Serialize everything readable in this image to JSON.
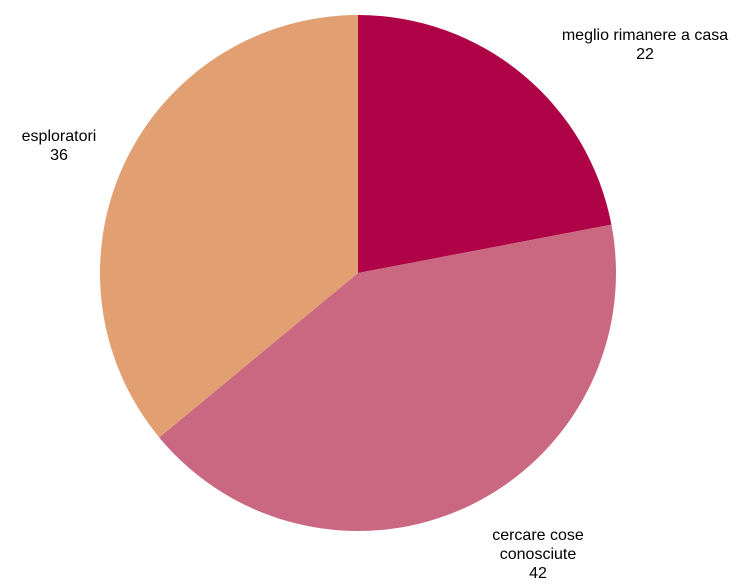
{
  "chart_data": {
    "type": "pie",
    "title": "",
    "slices": [
      {
        "label_lines": [
          "meglio rimanere a casa"
        ],
        "value": 22,
        "value_label": "22",
        "color": "#AE0347"
      },
      {
        "label_lines": [
          "cercare cose",
          "conosciute"
        ],
        "value": 42,
        "value_label": "42",
        "color": "#C96880"
      },
      {
        "label_lines": [
          "esploratori"
        ],
        "value": 36,
        "value_label": "36",
        "color": "#E19F72"
      }
    ],
    "start_angle_deg": 0,
    "direction": "clockwise",
    "legend": "none",
    "labels": "outside"
  }
}
